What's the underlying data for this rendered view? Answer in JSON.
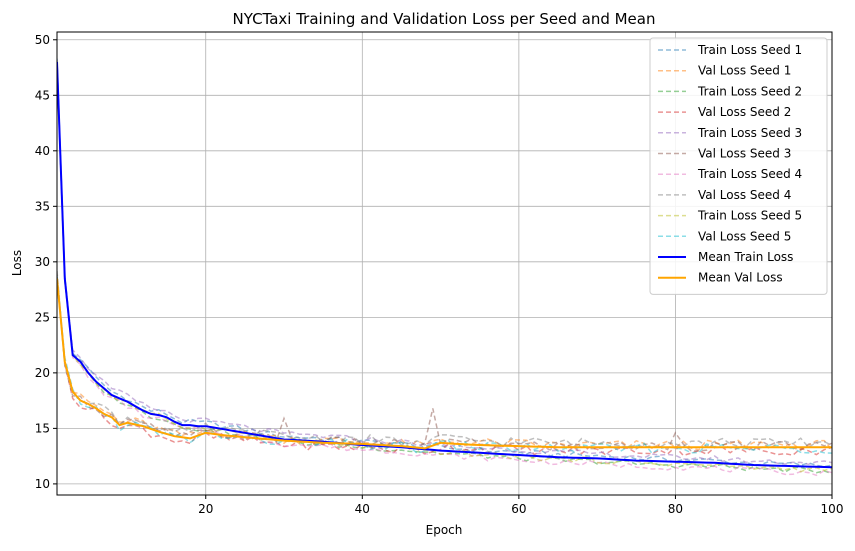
{
  "chart_data": {
    "type": "line",
    "title": "NYCTaxi Training and Validation Loss per Seed and Mean",
    "xlabel": "Epoch",
    "ylabel": "Loss",
    "xlim": [
      1,
      100
    ],
    "ylim": [
      9.0,
      50.7
    ],
    "grid": true,
    "legend_position": "top-right",
    "xticks": [
      20,
      40,
      60,
      80,
      100
    ],
    "yticks": [
      10,
      15,
      20,
      25,
      30,
      35,
      40,
      45,
      50
    ],
    "mean_anchors": {
      "train": [
        [
          1,
          48.0
        ],
        [
          2,
          28.5
        ],
        [
          3,
          21.6
        ],
        [
          4,
          21.0
        ],
        [
          5,
          20.0
        ],
        [
          6,
          19.2
        ],
        [
          7,
          18.6
        ],
        [
          8,
          18.0
        ],
        [
          9,
          17.7
        ],
        [
          10,
          17.4
        ],
        [
          11,
          17.0
        ],
        [
          12,
          16.6
        ],
        [
          13,
          16.3
        ],
        [
          14,
          16.2
        ],
        [
          15,
          16.0
        ],
        [
          16,
          15.6
        ],
        [
          17,
          15.3
        ],
        [
          18,
          15.3
        ],
        [
          19,
          15.2
        ],
        [
          20,
          15.2
        ],
        [
          25,
          14.6
        ],
        [
          30,
          14.0
        ],
        [
          35,
          13.8
        ],
        [
          40,
          13.5
        ],
        [
          45,
          13.3
        ],
        [
          50,
          13.0
        ],
        [
          55,
          12.8
        ],
        [
          60,
          12.6
        ],
        [
          65,
          12.4
        ],
        [
          70,
          12.3
        ],
        [
          75,
          12.1
        ],
        [
          80,
          12.0
        ],
        [
          85,
          11.9
        ],
        [
          90,
          11.7
        ],
        [
          95,
          11.6
        ],
        [
          100,
          11.5
        ]
      ],
      "val": [
        [
          1,
          28.5
        ],
        [
          2,
          21.0
        ],
        [
          3,
          18.3
        ],
        [
          4,
          17.5
        ],
        [
          5,
          17.2
        ],
        [
          6,
          16.8
        ],
        [
          7,
          16.3
        ],
        [
          8,
          16.0
        ],
        [
          9,
          15.3
        ],
        [
          10,
          15.5
        ],
        [
          12,
          15.2
        ],
        [
          14,
          14.7
        ],
        [
          16,
          14.3
        ],
        [
          18,
          14.1
        ],
        [
          20,
          14.6
        ],
        [
          22,
          14.4
        ],
        [
          25,
          14.2
        ],
        [
          30,
          13.9
        ],
        [
          35,
          13.7
        ],
        [
          40,
          13.6
        ],
        [
          45,
          13.4
        ],
        [
          48,
          13.2
        ],
        [
          50,
          13.7
        ],
        [
          52,
          13.6
        ],
        [
          55,
          13.5
        ],
        [
          60,
          13.4
        ],
        [
          65,
          13.3
        ],
        [
          70,
          13.3
        ],
        [
          75,
          13.3
        ],
        [
          80,
          13.3
        ],
        [
          85,
          13.3
        ],
        [
          90,
          13.3
        ],
        [
          95,
          13.3
        ],
        [
          100,
          13.3
        ]
      ]
    },
    "series": [
      {
        "name": "Train Loss Seed 1",
        "color": "#1f77b4",
        "style": "dashed",
        "kind": "train",
        "offset": 0.3,
        "noise": 0.25,
        "spikes": []
      },
      {
        "name": "Val Loss Seed 1",
        "color": "#ff7f0e",
        "style": "dashed",
        "kind": "val",
        "offset": 0.2,
        "noise": 0.45,
        "spikes": []
      },
      {
        "name": "Train Loss Seed 2",
        "color": "#2ca02c",
        "style": "dashed",
        "kind": "train",
        "offset": -0.2,
        "noise": 0.25,
        "spikes": []
      },
      {
        "name": "Val Loss Seed 2",
        "color": "#d62728",
        "style": "dashed",
        "kind": "val",
        "offset": -0.3,
        "noise": 0.45,
        "spikes": []
      },
      {
        "name": "Train Loss Seed 3",
        "color": "#9467bd",
        "style": "dashed",
        "kind": "train",
        "offset": 0.5,
        "noise": 0.25,
        "spikes": []
      },
      {
        "name": "Val Loss Seed 3",
        "color": "#8c564b",
        "style": "dashed",
        "kind": "val",
        "offset": 0.1,
        "noise": 0.45,
        "spikes": [
          [
            30,
            15.9
          ],
          [
            49,
            16.8
          ],
          [
            80,
            14.6
          ]
        ]
      },
      {
        "name": "Train Loss Seed 4",
        "color": "#e377c2",
        "style": "dashed",
        "kind": "train",
        "offset": -0.4,
        "noise": 0.25,
        "spikes": []
      },
      {
        "name": "Val Loss Seed 4",
        "color": "#7f7f7f",
        "style": "dashed",
        "kind": "val",
        "offset": 0.4,
        "noise": 0.45,
        "spikes": []
      },
      {
        "name": "Train Loss Seed 5",
        "color": "#bcbd22",
        "style": "dashed",
        "kind": "train",
        "offset": -0.1,
        "noise": 0.25,
        "spikes": []
      },
      {
        "name": "Val Loss Seed 5",
        "color": "#17becf",
        "style": "dashed",
        "kind": "val",
        "offset": -0.1,
        "noise": 0.45,
        "spikes": []
      },
      {
        "name": "Mean Train Loss",
        "color": "#0000ff",
        "style": "solid",
        "kind": "train",
        "offset": 0,
        "noise": 0.0,
        "spikes": []
      },
      {
        "name": "Mean Val Loss",
        "color": "#ffa500",
        "style": "solid",
        "kind": "val",
        "offset": 0,
        "noise": 0.0,
        "spikes": []
      }
    ]
  }
}
